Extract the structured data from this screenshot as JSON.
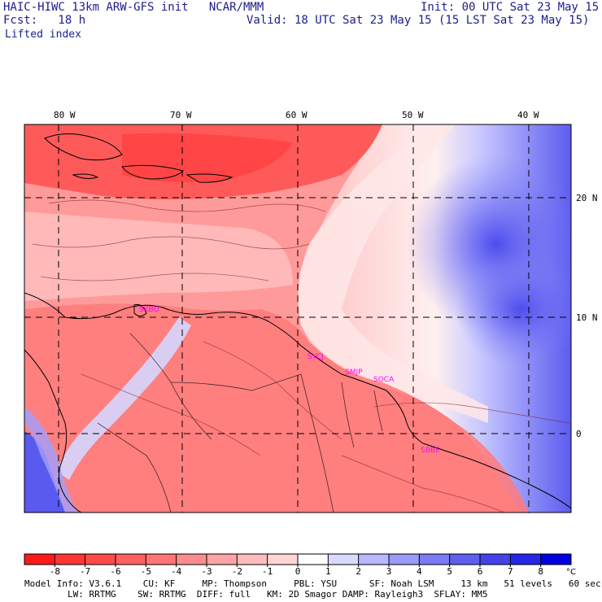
{
  "header": {
    "title_line": "HAIC-HIWC 13km ARW-GFS init   NCAR/MMM",
    "init": "Init: 00 UTC Sat 23 May 15",
    "fcst": "Fcst:   18 h",
    "valid": "Valid: 18 UTC Sat 23 May 15 (15 LST Sat 23 May 15)",
    "field": "Lifted index"
  },
  "longitude_labels": [
    "80 W",
    "70 W",
    "60 W",
    "50 W",
    "40 W"
  ],
  "latitude_labels": [
    "20 N",
    "10 N",
    "0"
  ],
  "stations": [
    "SKBO",
    "SYCJ",
    "SMJP",
    "SOCA",
    "SBBE"
  ],
  "colorbar": {
    "ticks": [
      "-8",
      "-7",
      "-6",
      "-5",
      "-4",
      "-3",
      "-2",
      "-1",
      "0",
      "1",
      "2",
      "3",
      "4",
      "5",
      "6",
      "7",
      "8"
    ],
    "unit": "°C",
    "colors": [
      "#ff1a1a",
      "#ff3535",
      "#ff4a4a",
      "#ff5f5f",
      "#ff7575",
      "#ff8c8c",
      "#ffa4a4",
      "#ffbcbc",
      "#ffd6d6",
      "#ffffff",
      "#d9d9ff",
      "#b8b8ff",
      "#9a9afa",
      "#7b7bf5",
      "#5e5eef",
      "#4343ea",
      "#2626e6",
      "#0000e0"
    ]
  },
  "footer": {
    "line1": "Model Info: V3.6.1    CU: KF     MP: Thompson     PBL: YSU      SF: Noah LSM     13 km   51 levels   60 sec",
    "line2": "        LW: RRTMG    SW: RRTMG  DIFF: full   KM: 2D Smagor DAMP: Rayleigh3  SFLAY: MM5"
  }
}
